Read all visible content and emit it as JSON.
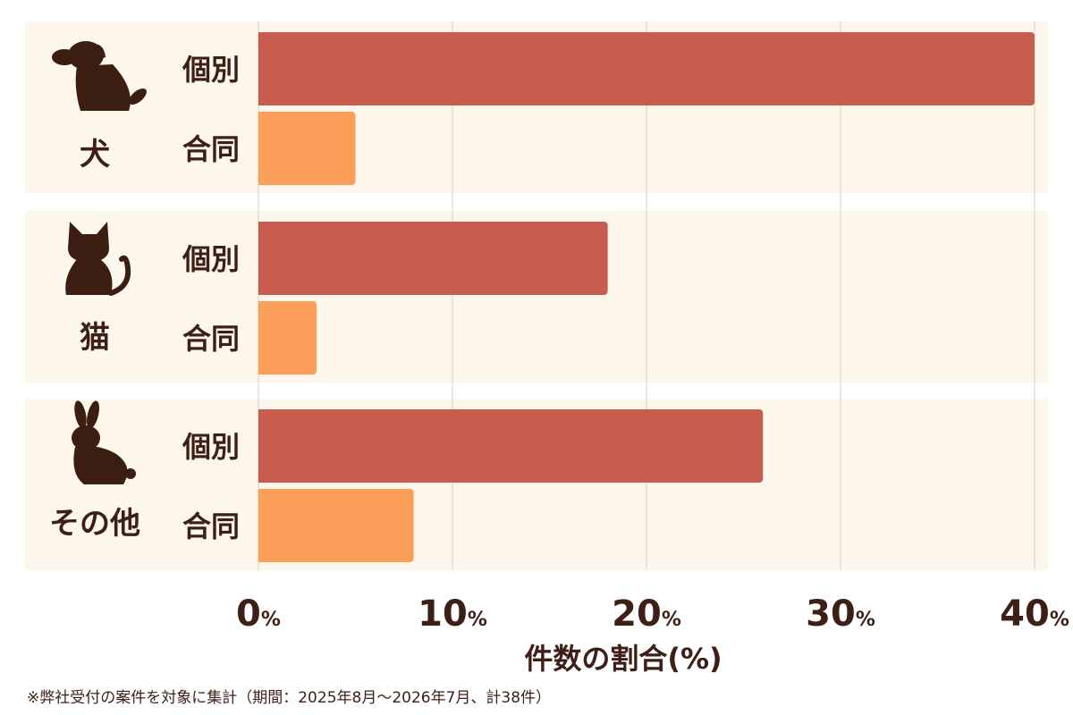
{
  "chart_data": {
    "type": "bar",
    "orientation": "horizontal",
    "groups": [
      {
        "label": "犬",
        "icon": "dog-icon"
      },
      {
        "label": "猫",
        "icon": "cat-icon"
      },
      {
        "label": "その他",
        "icon": "rabbit-icon"
      }
    ],
    "series": [
      {
        "name": "個別",
        "color": "#c85c4e",
        "values": [
          40,
          18,
          26
        ]
      },
      {
        "name": "合同",
        "color": "#fb9e58",
        "values": [
          5,
          3,
          8
        ]
      }
    ],
    "xlim": [
      0,
      40
    ],
    "xticks": [
      0,
      10,
      20,
      30,
      40
    ],
    "tick_suffix": "%",
    "xlabel": "件数の割合(%)",
    "grid": true,
    "group_band_color": "#fdf7eb",
    "grid_color": "#d6d0c4",
    "text_color": "#3d1f16"
  },
  "footnote": "※弊社受付の案件を対象に集計（期間：2025年8月〜2026年7月、計38件）"
}
